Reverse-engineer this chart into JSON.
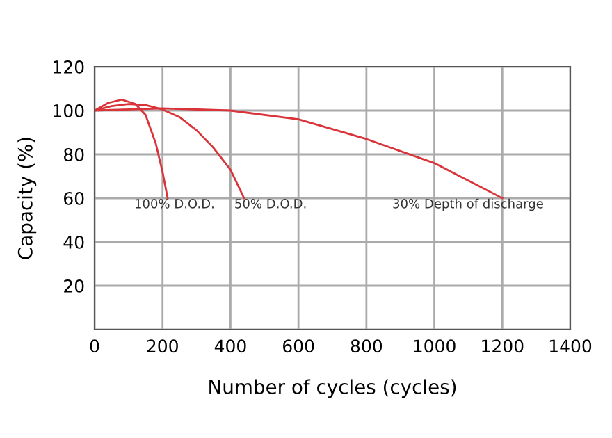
{
  "chart_data": {
    "type": "line",
    "xlabel": "Number of cycles (cycles)",
    "ylabel": "Capacity (%)",
    "xlim": [
      0,
      1400
    ],
    "ylim": [
      0,
      120
    ],
    "xticks": [
      0,
      200,
      400,
      600,
      800,
      1000,
      1200,
      1400
    ],
    "yticks": [
      {
        "value": 0,
        "label": null
      },
      20,
      40,
      60,
      80,
      100,
      120
    ],
    "grid": true,
    "marker": "none",
    "line_style": "solid",
    "series": [
      {
        "color": "#d8343a",
        "x": [
          0,
          40,
          80,
          120,
          150,
          180,
          200,
          215
        ],
        "values": [
          100,
          103.5,
          105,
          103,
          98,
          85,
          72,
          60
        ]
      },
      {
        "color": "#d8343a",
        "x": [
          0,
          50,
          100,
          150,
          200,
          250,
          300,
          350,
          400,
          440
        ],
        "values": [
          100,
          102,
          103,
          102.5,
          100.5,
          97,
          91,
          83,
          73,
          60
        ]
      },
      {
        "color": "#d8343a",
        "x": [
          0,
          200,
          400,
          600,
          800,
          1000,
          1100,
          1200
        ],
        "values": [
          100,
          101,
          100,
          96,
          87,
          76,
          68,
          60
        ]
      }
    ],
    "annotations": [
      "100% D.O.D.",
      "50% D.O.D.",
      "30% Depth of discharge"
    ]
  }
}
